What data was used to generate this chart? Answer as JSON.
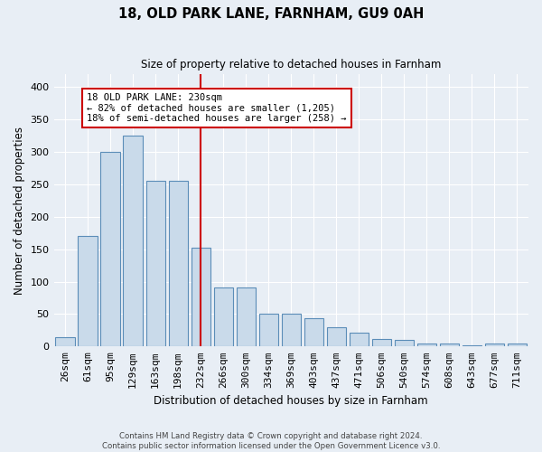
{
  "title": "18, OLD PARK LANE, FARNHAM, GU9 0AH",
  "subtitle": "Size of property relative to detached houses in Farnham",
  "xlabel": "Distribution of detached houses by size in Farnham",
  "ylabel": "Number of detached properties",
  "categories": [
    "26sqm",
    "61sqm",
    "95sqm",
    "129sqm",
    "163sqm",
    "198sqm",
    "232sqm",
    "266sqm",
    "300sqm",
    "334sqm",
    "369sqm",
    "403sqm",
    "437sqm",
    "471sqm",
    "506sqm",
    "540sqm",
    "574sqm",
    "608sqm",
    "643sqm",
    "677sqm",
    "711sqm"
  ],
  "bar_heights": [
    14,
    170,
    300,
    325,
    255,
    255,
    153,
    91,
    91,
    50,
    50,
    44,
    29,
    22,
    11,
    10,
    5,
    4,
    2,
    4,
    4
  ],
  "bar_color": "#c9daea",
  "bar_edge_color": "#5b8db8",
  "ylim": [
    0,
    420
  ],
  "yticks": [
    0,
    50,
    100,
    150,
    200,
    250,
    300,
    350,
    400
  ],
  "vline_x_index": 6.0,
  "vline_color": "#cc0000",
  "annotation_title": "18 OLD PARK LANE: 230sqm",
  "annotation_line1": "← 82% of detached houses are smaller (1,205)",
  "annotation_line2": "18% of semi-detached houses are larger (258) →",
  "annotation_box_facecolor": "#ffffff",
  "annotation_box_edgecolor": "#cc0000",
  "bg_color": "#e8eef5",
  "grid_color": "#ffffff",
  "footer_line1": "Contains HM Land Registry data © Crown copyright and database right 2024.",
  "footer_line2": "Contains public sector information licensed under the Open Government Licence v3.0."
}
